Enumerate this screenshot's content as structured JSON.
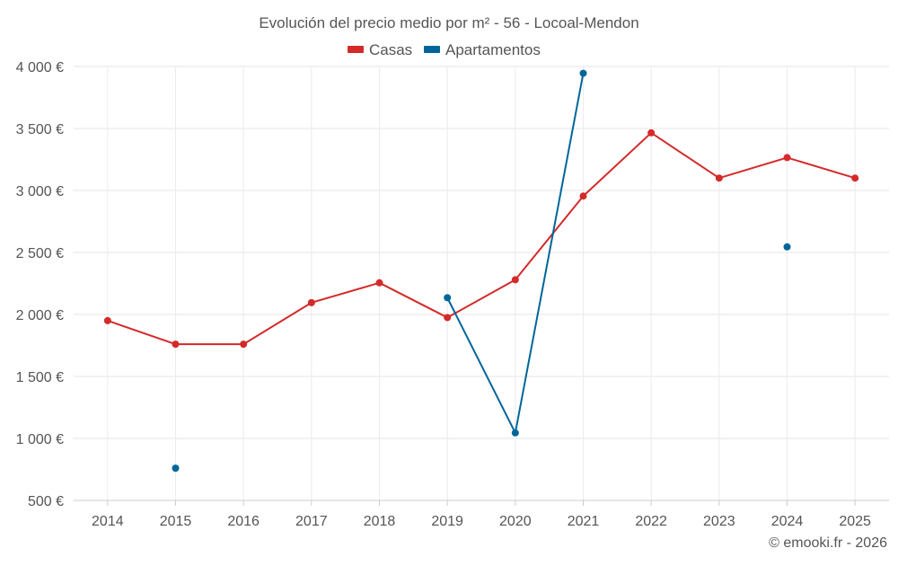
{
  "chart_data": {
    "type": "line",
    "title": "Evolución del precio medio por m² - 56 - Locoal-Mendon",
    "xlabel": "",
    "ylabel": "",
    "categories": [
      "2014",
      "2015",
      "2016",
      "2017",
      "2018",
      "2019",
      "2020",
      "2021",
      "2022",
      "2023",
      "2024",
      "2025"
    ],
    "ylim": [
      500,
      4000
    ],
    "yticks": [
      500,
      1000,
      1500,
      2000,
      2500,
      3000,
      3500,
      4000
    ],
    "ytick_labels": [
      "500 €",
      "1 000 €",
      "1 500 €",
      "2 000 €",
      "2 500 €",
      "3 000 €",
      "3 500 €",
      "4 000 €"
    ],
    "legend_position": "top-center",
    "grid": true,
    "series": [
      {
        "name": "Casas",
        "color": "#d42a2a",
        "values": [
          1950,
          1760,
          1760,
          2095,
          2255,
          1975,
          2280,
          2955,
          3465,
          3100,
          3265,
          3100
        ]
      },
      {
        "name": "Apartamentos",
        "color": "#006699",
        "values": [
          null,
          760,
          null,
          null,
          null,
          2135,
          1045,
          3945,
          null,
          null,
          2545,
          null
        ]
      }
    ]
  },
  "credit": "© emooki.fr - 2026"
}
